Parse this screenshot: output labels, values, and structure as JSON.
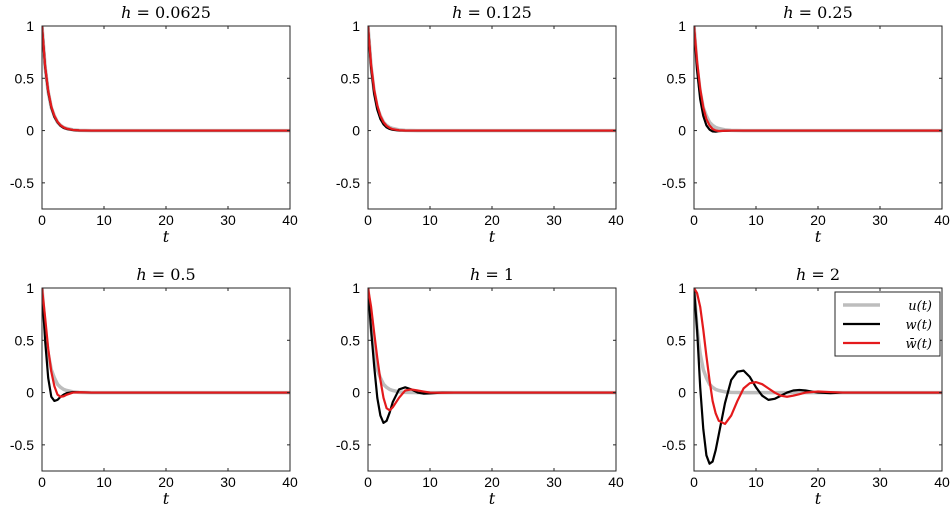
{
  "chart_data": [
    {
      "type": "line",
      "title": "h = 0.0625",
      "title_parts": {
        "lhs": "h",
        "rhs": "0.0625"
      },
      "xlabel": "t",
      "xlim": [
        0,
        40
      ],
      "ylim": [
        -0.75,
        1
      ],
      "xticks": [
        0,
        10,
        20,
        30,
        40
      ],
      "yticks": [
        1,
        0.5,
        0,
        -0.5
      ],
      "ytick_labels": [
        "1",
        "0.5",
        "0",
        "-0.5"
      ],
      "series": [
        {
          "name": "u(t)",
          "color": "#bdbdbd",
          "x": [
            0,
            0.5,
            1,
            1.5,
            2,
            2.5,
            3,
            3.5,
            4,
            5,
            6,
            8,
            10,
            40
          ],
          "values": [
            1,
            0.61,
            0.37,
            0.22,
            0.14,
            0.08,
            0.05,
            0.03,
            0.02,
            0.007,
            0.002,
            0,
            0,
            0
          ]
        },
        {
          "name": "w(t)",
          "color": "#000000",
          "x": [
            0,
            0.5,
            1,
            1.5,
            2,
            2.5,
            3,
            3.5,
            4,
            5,
            6,
            8,
            10,
            40
          ],
          "values": [
            1,
            0.61,
            0.37,
            0.22,
            0.13,
            0.08,
            0.045,
            0.025,
            0.015,
            0.005,
            0.001,
            0,
            0,
            0
          ]
        },
        {
          "name": "w̄(t)",
          "color": "#e41a1c",
          "x": [
            0,
            0.5,
            1,
            1.5,
            2,
            2.5,
            3,
            3.5,
            4,
            5,
            6,
            8,
            10,
            40
          ],
          "values": [
            1,
            0.62,
            0.38,
            0.23,
            0.14,
            0.085,
            0.05,
            0.03,
            0.018,
            0.006,
            0.002,
            0,
            0,
            0
          ]
        }
      ]
    },
    {
      "type": "line",
      "title": "h = 0.125",
      "title_parts": {
        "lhs": "h",
        "rhs": "0.125"
      },
      "xlabel": "t",
      "xlim": [
        0,
        40
      ],
      "ylim": [
        -0.75,
        1
      ],
      "xticks": [
        0,
        10,
        20,
        30,
        40
      ],
      "yticks": [
        1,
        0.5,
        0,
        -0.5
      ],
      "ytick_labels": [
        "1",
        "0.5",
        "0",
        "-0.5"
      ],
      "series": [
        {
          "name": "u(t)",
          "color": "#bdbdbd",
          "x": [
            0,
            0.5,
            1,
            1.5,
            2,
            2.5,
            3,
            3.5,
            4,
            5,
            6,
            8,
            10,
            40
          ],
          "values": [
            1,
            0.61,
            0.37,
            0.22,
            0.14,
            0.08,
            0.05,
            0.03,
            0.02,
            0.007,
            0.002,
            0,
            0,
            0
          ]
        },
        {
          "name": "w(t)",
          "color": "#000000",
          "x": [
            0,
            0.5,
            1,
            1.5,
            2,
            2.5,
            3,
            3.5,
            4,
            5,
            6,
            8,
            10,
            40
          ],
          "values": [
            1,
            0.6,
            0.35,
            0.2,
            0.11,
            0.06,
            0.03,
            0.015,
            0.007,
            0.001,
            0,
            0,
            0,
            0
          ]
        },
        {
          "name": "w̄(t)",
          "color": "#e41a1c",
          "x": [
            0,
            0.5,
            1,
            1.5,
            2,
            2.5,
            3,
            3.5,
            4,
            5,
            6,
            8,
            10,
            40
          ],
          "values": [
            1,
            0.63,
            0.39,
            0.24,
            0.14,
            0.08,
            0.045,
            0.025,
            0.013,
            0.003,
            0.001,
            0,
            0,
            0
          ]
        }
      ]
    },
    {
      "type": "line",
      "title": "h = 0.25",
      "title_parts": {
        "lhs": "h",
        "rhs": "0.25"
      },
      "xlabel": "t",
      "xlim": [
        0,
        40
      ],
      "ylim": [
        -0.75,
        1
      ],
      "xticks": [
        0,
        10,
        20,
        30,
        40
      ],
      "yticks": [
        1,
        0.5,
        0,
        -0.5
      ],
      "ytick_labels": [
        "1",
        "0.5",
        "0",
        "-0.5"
      ],
      "series": [
        {
          "name": "u(t)",
          "color": "#bdbdbd",
          "x": [
            0,
            0.5,
            1,
            1.5,
            2,
            2.5,
            3,
            3.5,
            4,
            5,
            6,
            8,
            10,
            40
          ],
          "values": [
            1,
            0.61,
            0.37,
            0.22,
            0.14,
            0.08,
            0.05,
            0.03,
            0.02,
            0.007,
            0.002,
            0,
            0,
            0
          ]
        },
        {
          "name": "w(t)",
          "color": "#000000",
          "x": [
            0,
            0.5,
            1,
            1.5,
            2,
            2.5,
            3,
            3.5,
            4,
            5,
            6,
            8,
            10,
            40
          ],
          "values": [
            1,
            0.58,
            0.3,
            0.14,
            0.05,
            0.01,
            -0.008,
            -0.01,
            -0.006,
            -0.002,
            0,
            0,
            0,
            0
          ]
        },
        {
          "name": "w̄(t)",
          "color": "#e41a1c",
          "x": [
            0,
            0.5,
            1,
            1.5,
            2,
            2.5,
            3,
            3.5,
            4,
            5,
            6,
            8,
            10,
            40
          ],
          "values": [
            1,
            0.66,
            0.4,
            0.22,
            0.11,
            0.05,
            0.015,
            0.001,
            -0.004,
            -0.002,
            0,
            0,
            0,
            0
          ]
        }
      ]
    },
    {
      "type": "line",
      "title": "h = 0.5",
      "title_parts": {
        "lhs": "h",
        "rhs": "0.5"
      },
      "xlabel": "t",
      "xlim": [
        0,
        40
      ],
      "ylim": [
        -0.75,
        1
      ],
      "xticks": [
        0,
        10,
        20,
        30,
        40
      ],
      "yticks": [
        1,
        0.5,
        0,
        -0.5
      ],
      "ytick_labels": [
        "1",
        "0.5",
        "0",
        "-0.5"
      ],
      "series": [
        {
          "name": "u(t)",
          "color": "#bdbdbd",
          "x": [
            0,
            0.5,
            1,
            1.5,
            2,
            2.5,
            3,
            3.5,
            4,
            5,
            6,
            8,
            10,
            40
          ],
          "values": [
            1,
            0.61,
            0.37,
            0.22,
            0.14,
            0.08,
            0.05,
            0.03,
            0.02,
            0.007,
            0.002,
            0,
            0,
            0
          ]
        },
        {
          "name": "w(t)",
          "color": "#000000",
          "x": [
            0,
            0.5,
            1,
            1.5,
            2,
            2.5,
            3,
            3.5,
            4,
            5,
            6,
            8,
            10,
            40
          ],
          "values": [
            1,
            0.5,
            0.14,
            -0.04,
            -0.08,
            -0.07,
            -0.04,
            -0.02,
            -0.005,
            0.004,
            0.002,
            0,
            0,
            0
          ]
        },
        {
          "name": "w̄(t)",
          "color": "#e41a1c",
          "x": [
            0,
            0.5,
            1,
            1.5,
            2,
            2.5,
            3,
            3.5,
            4,
            5,
            6,
            8,
            10,
            40
          ],
          "values": [
            1,
            0.72,
            0.42,
            0.2,
            0.06,
            -0.02,
            -0.04,
            -0.035,
            -0.02,
            0,
            0.003,
            0,
            0,
            0
          ]
        }
      ]
    },
    {
      "type": "line",
      "title": "h = 1",
      "title_parts": {
        "lhs": "h",
        "rhs": "1"
      },
      "xlabel": "t",
      "xlim": [
        0,
        40
      ],
      "ylim": [
        -0.75,
        1
      ],
      "xticks": [
        0,
        10,
        20,
        30,
        40
      ],
      "yticks": [
        1,
        0.5,
        0,
        -0.5
      ],
      "ytick_labels": [
        "1",
        "0.5",
        "0",
        "-0.5"
      ],
      "series": [
        {
          "name": "u(t)",
          "color": "#bdbdbd",
          "x": [
            0,
            0.5,
            1,
            1.5,
            2,
            2.5,
            3,
            3.5,
            4,
            5,
            6,
            8,
            10,
            40
          ],
          "values": [
            1,
            0.61,
            0.37,
            0.22,
            0.14,
            0.08,
            0.05,
            0.03,
            0.02,
            0.007,
            0.002,
            0,
            0,
            0
          ]
        },
        {
          "name": "w(t)",
          "color": "#000000",
          "x": [
            0,
            0.5,
            1,
            1.5,
            2,
            2.5,
            3,
            3.5,
            4,
            5,
            6,
            7,
            8,
            9,
            10,
            12,
            14,
            40
          ],
          "values": [
            1,
            0.6,
            0.25,
            -0.05,
            -0.22,
            -0.29,
            -0.27,
            -0.19,
            -0.09,
            0.03,
            0.05,
            0.03,
            0,
            -0.01,
            -0.008,
            0,
            0,
            0
          ]
        },
        {
          "name": "w̄(t)",
          "color": "#e41a1c",
          "x": [
            0,
            0.5,
            1,
            1.5,
            2,
            2.5,
            3,
            3.5,
            4,
            5,
            6,
            7,
            8,
            9,
            10,
            12,
            14,
            40
          ],
          "values": [
            1,
            0.82,
            0.57,
            0.33,
            0.12,
            -0.05,
            -0.15,
            -0.17,
            -0.14,
            -0.05,
            0.02,
            0.03,
            0.02,
            0.01,
            0,
            -0.002,
            0,
            0
          ]
        }
      ]
    },
    {
      "type": "line",
      "title": "h = 2",
      "title_parts": {
        "lhs": "h",
        "rhs": "2"
      },
      "xlabel": "t",
      "xlim": [
        0,
        40
      ],
      "ylim": [
        -0.75,
        1
      ],
      "xticks": [
        0,
        10,
        20,
        30,
        40
      ],
      "yticks": [
        1,
        0.5,
        0,
        -0.5
      ],
      "ytick_labels": [
        "1",
        "0.5",
        "0",
        "-0.5"
      ],
      "legend": {
        "entries": [
          "u(t)",
          "w(t)",
          "w̄(t)"
        ],
        "location": "top-right"
      },
      "series": [
        {
          "name": "u(t)",
          "color": "#bdbdbd",
          "x": [
            0,
            0.5,
            1,
            1.5,
            2,
            2.5,
            3,
            3.5,
            4,
            5,
            6,
            8,
            10,
            40
          ],
          "values": [
            1,
            0.61,
            0.37,
            0.22,
            0.14,
            0.08,
            0.05,
            0.03,
            0.02,
            0.007,
            0.002,
            0,
            0,
            0
          ]
        },
        {
          "name": "w(t)",
          "color": "#000000",
          "x": [
            0,
            0.5,
            1,
            1.5,
            2,
            2.5,
            3,
            3.5,
            4,
            5,
            6,
            7,
            8,
            9,
            10,
            11,
            12,
            13,
            14,
            15,
            16,
            17,
            18,
            19,
            20,
            22,
            24,
            26,
            40
          ],
          "values": [
            1,
            0.6,
            0.05,
            -0.35,
            -0.6,
            -0.68,
            -0.66,
            -0.55,
            -0.4,
            -0.1,
            0.12,
            0.2,
            0.21,
            0.15,
            0.05,
            -0.03,
            -0.07,
            -0.06,
            -0.03,
            0,
            0.02,
            0.025,
            0.02,
            0.01,
            0,
            -0.006,
            0,
            0,
            0
          ]
        },
        {
          "name": "w̄(t)",
          "color": "#e41a1c",
          "x": [
            0,
            0.5,
            1,
            1.5,
            2,
            2.5,
            3,
            3.5,
            4,
            5,
            6,
            7,
            8,
            9,
            10,
            11,
            12,
            13,
            14,
            15,
            16,
            17,
            18,
            20,
            22,
            24,
            40
          ],
          "values": [
            1,
            0.95,
            0.82,
            0.6,
            0.35,
            0.12,
            -0.08,
            -0.2,
            -0.27,
            -0.3,
            -0.22,
            -0.08,
            0.04,
            0.09,
            0.1,
            0.08,
            0.04,
            0,
            -0.03,
            -0.04,
            -0.03,
            -0.015,
            0,
            0.01,
            0.005,
            0,
            0
          ]
        }
      ]
    }
  ]
}
